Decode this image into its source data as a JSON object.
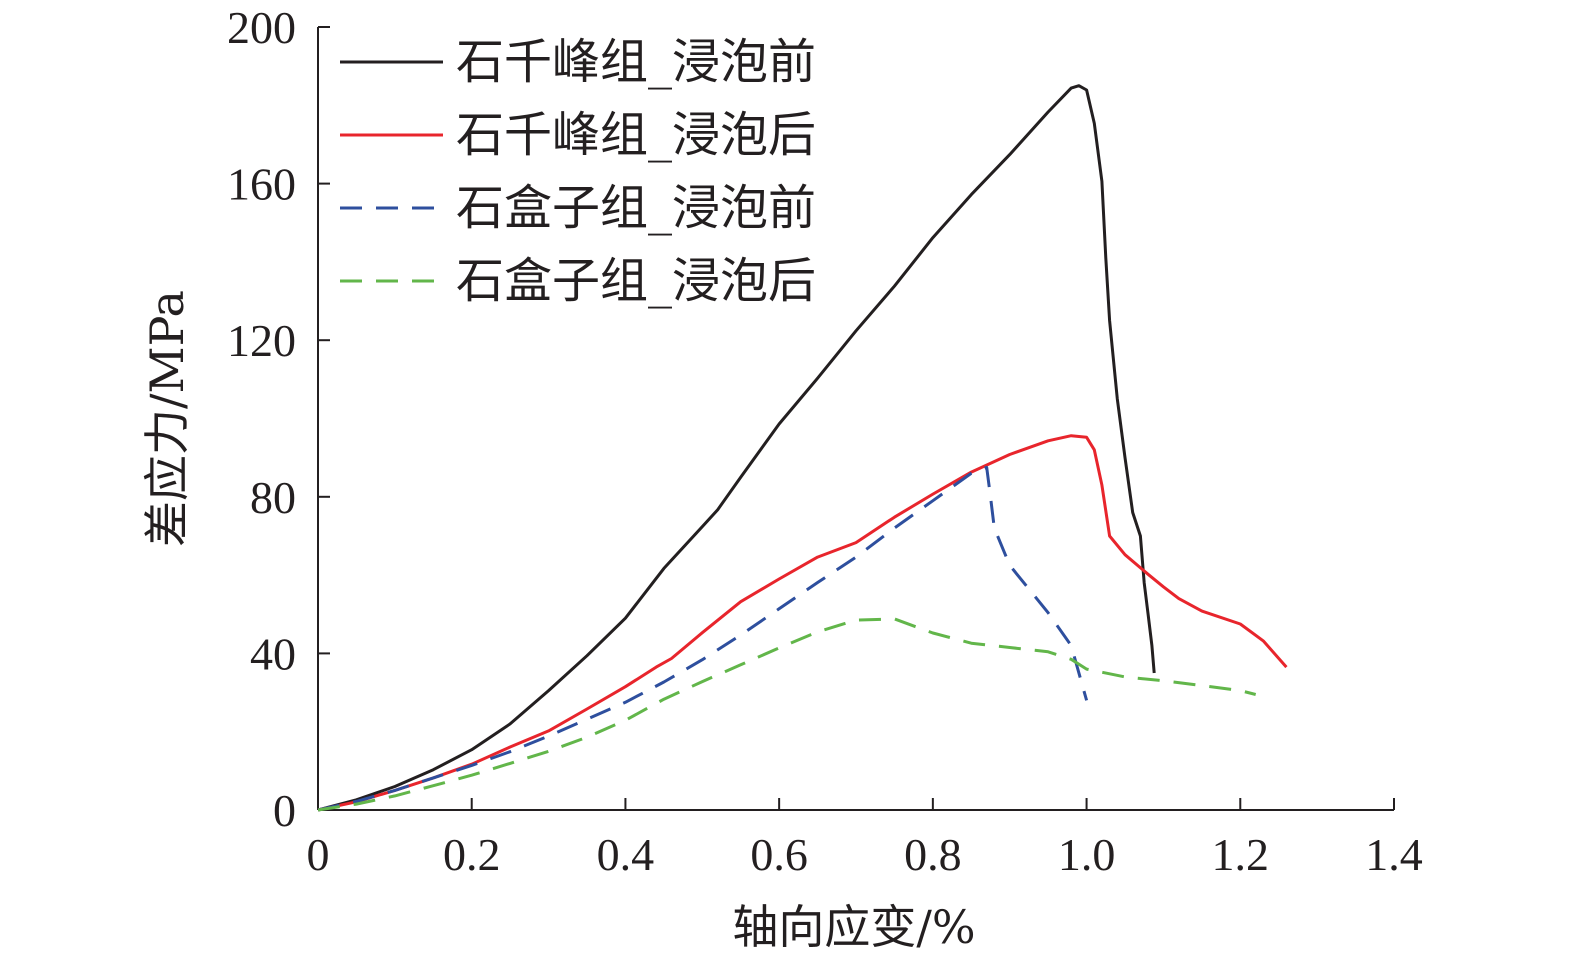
{
  "chart_data": {
    "type": "line",
    "title": "",
    "xlabel": "轴向应变/%",
    "ylabel": "差应力/MPa",
    "xlim": [
      0,
      1.4
    ],
    "ylim": [
      0,
      200
    ],
    "xticks": [
      0,
      0.2,
      0.4,
      0.6,
      0.8,
      1.0,
      1.2,
      1.4
    ],
    "xtick_labels": [
      "0",
      "0.2",
      "0.4",
      "0.6",
      "0.8",
      "1.0",
      "1.2",
      "1.4"
    ],
    "yticks": [
      0,
      40,
      80,
      120,
      160,
      200
    ],
    "ytick_labels": [
      "0",
      "40",
      "80",
      "120",
      "160",
      "200"
    ],
    "grid": false,
    "legend_position": "top-left",
    "series": [
      {
        "name": "石千峰组_浸泡前",
        "color": "#231f20",
        "style": "solid",
        "x": [
          0,
          0.05,
          0.1,
          0.15,
          0.2,
          0.25,
          0.3,
          0.35,
          0.4,
          0.45,
          0.5,
          0.52,
          0.55,
          0.6,
          0.65,
          0.7,
          0.75,
          0.8,
          0.85,
          0.9,
          0.95,
          0.98,
          0.99,
          1.0,
          1.01,
          1.02,
          1.025,
          1.03,
          1.04,
          1.05,
          1.06,
          1.07,
          1.075,
          1.08,
          1.085,
          1.088
        ],
        "y": [
          0,
          2.6,
          6,
          10.3,
          15.4,
          22,
          30.5,
          39.4,
          49,
          61.7,
          72.4,
          76.7,
          85,
          98.6,
          110.3,
          122.4,
          133.8,
          146.2,
          157.2,
          167.4,
          178.3,
          184.4,
          185,
          183.9,
          175.4,
          160.6,
          141,
          125,
          105,
          90,
          76,
          70,
          58,
          50,
          42,
          35
        ]
      },
      {
        "name": "石千峰组_浸泡后",
        "color": "#e8252c",
        "style": "solid",
        "x": [
          0,
          0.05,
          0.1,
          0.15,
          0.2,
          0.25,
          0.3,
          0.35,
          0.4,
          0.44,
          0.46,
          0.5,
          0.55,
          0.6,
          0.65,
          0.7,
          0.75,
          0.8,
          0.85,
          0.9,
          0.95,
          0.98,
          1.0,
          1.01,
          1.02,
          1.03,
          1.05,
          1.08,
          1.1,
          1.12,
          1.15,
          1.2,
          1.23,
          1.26
        ],
        "y": [
          0,
          2.1,
          5,
          8.2,
          11.7,
          16.1,
          20.2,
          25.8,
          31.5,
          36.5,
          38.7,
          45.3,
          53.2,
          59,
          64.6,
          68.3,
          74.8,
          80.7,
          86.3,
          90.8,
          94.3,
          95.6,
          95.2,
          92,
          83,
          70,
          65.2,
          60.2,
          57,
          54,
          50.8,
          47.5,
          43.2,
          36.5
        ]
      },
      {
        "name": "石盒子组_浸泡前",
        "color": "#2e4f9e",
        "style": "dashed",
        "x": [
          0,
          0.05,
          0.1,
          0.15,
          0.2,
          0.25,
          0.3,
          0.35,
          0.4,
          0.45,
          0.5,
          0.55,
          0.6,
          0.65,
          0.7,
          0.75,
          0.8,
          0.85,
          0.87,
          0.875,
          0.88,
          0.9,
          0.95,
          0.98,
          1.0
        ],
        "y": [
          0,
          2.2,
          5,
          8.2,
          11.4,
          14.9,
          18.9,
          23.2,
          27.5,
          32.7,
          38.4,
          44.7,
          51.4,
          58.1,
          64.6,
          72,
          79,
          86,
          87.5,
          80,
          72,
          62.5,
          50.4,
          42,
          28
        ]
      },
      {
        "name": "石盒子组_浸泡后",
        "color": "#62b64a",
        "style": "dashed",
        "x": [
          0,
          0.05,
          0.1,
          0.15,
          0.2,
          0.25,
          0.3,
          0.35,
          0.4,
          0.45,
          0.5,
          0.55,
          0.6,
          0.65,
          0.7,
          0.75,
          0.8,
          0.85,
          0.9,
          0.95,
          0.98,
          1.0,
          1.05,
          1.1,
          1.15,
          1.2,
          1.22
        ],
        "y": [
          0,
          1.5,
          3.6,
          6.2,
          8.9,
          11.9,
          15,
          18.6,
          22.9,
          28.3,
          32.8,
          37.1,
          41.4,
          45.5,
          48.5,
          48.8,
          45.2,
          42.6,
          41.5,
          40.4,
          38.5,
          36,
          34,
          33,
          31.8,
          30.5,
          29.5
        ]
      }
    ]
  }
}
